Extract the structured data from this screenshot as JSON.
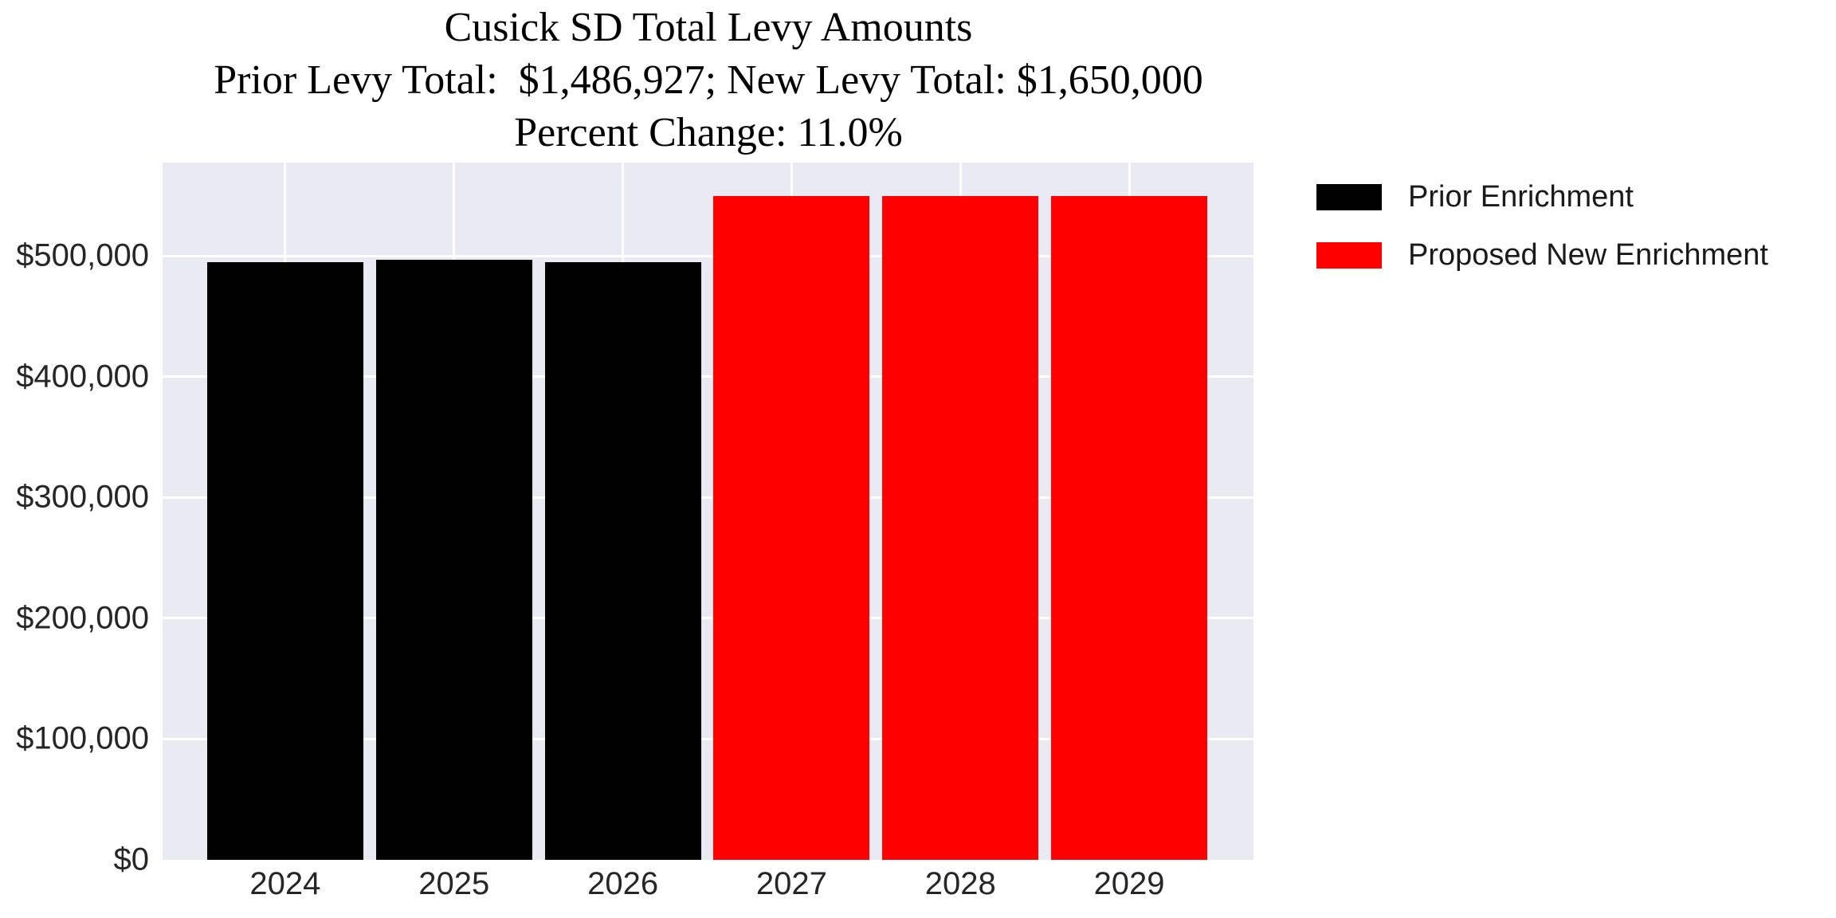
{
  "chart_data": {
    "type": "bar",
    "title": "Cusick SD Total Levy Amounts",
    "subtitle": "Prior Levy Total:  $1,486,927; New Levy Total: $1,650,000",
    "subtitle2": "Percent Change: 11.0%",
    "prior_levy_total": "$1,486,927",
    "new_levy_total": "$1,650,000",
    "percent_change": "11.0%",
    "categories": [
      "2024",
      "2025",
      "2026",
      "2027",
      "2028",
      "2029"
    ],
    "series": [
      {
        "name": "Prior Enrichment",
        "color": "#000000",
        "values": [
          495000,
          497000,
          495000,
          null,
          null,
          null
        ]
      },
      {
        "name": "Proposed New Enrichment",
        "color": "#ff0000",
        "values": [
          null,
          null,
          null,
          550000,
          550000,
          550000
        ]
      }
    ],
    "xlabel": "",
    "ylabel": "",
    "ylim": [
      0,
      577500
    ],
    "y_ticks": [
      {
        "label": "$0",
        "value": 0
      },
      {
        "label": "$100,000",
        "value": 100000
      },
      {
        "label": "$200,000",
        "value": 200000
      },
      {
        "label": "$300,000",
        "value": 300000
      },
      {
        "label": "$400,000",
        "value": 400000
      },
      {
        "label": "$500,000",
        "value": 500000
      }
    ],
    "grid": true,
    "legend_position": "outside-upper-right",
    "colors": {
      "figure_bg": "#ffffff",
      "plot_bg": "#eaeaf2",
      "grid": "#ffffff",
      "tick_text": "#262626",
      "title_text": "#000000"
    }
  }
}
